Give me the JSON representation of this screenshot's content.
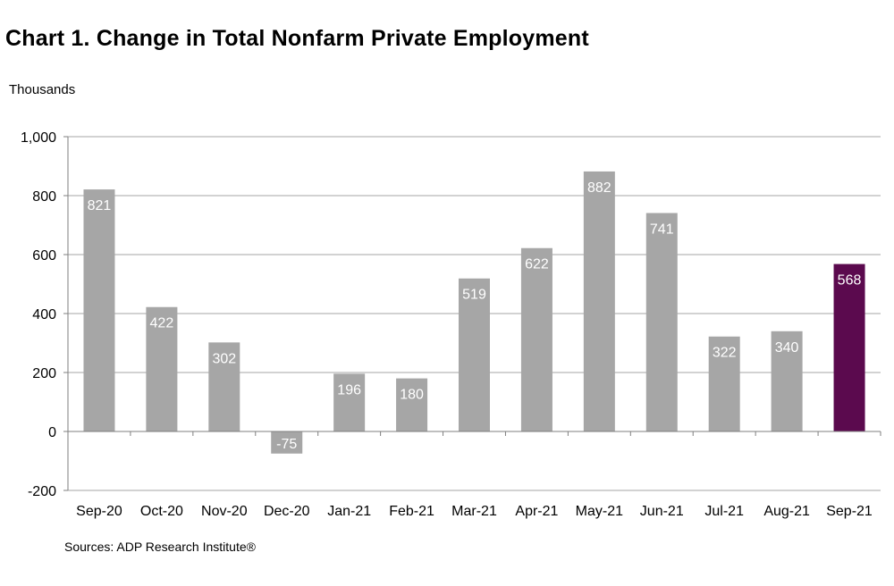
{
  "colors": {
    "bar_default": "#a6a6a6",
    "bar_highlight": "#5b0a4e",
    "grid": "#a6a6a6",
    "axis": "#7f7f7f",
    "data_label": "#ffffff"
  },
  "source": "Sources: ADP Research Institute®",
  "chart_data": {
    "type": "bar",
    "title": "Chart 1. Change in Total Nonfarm Private Employment",
    "ylabel": "Thousands",
    "xlabel": "",
    "categories": [
      "Sep-20",
      "Oct-20",
      "Nov-20",
      "Dec-20",
      "Jan-21",
      "Feb-21",
      "Mar-21",
      "Apr-21",
      "May-21",
      "Jun-21",
      "Jul-21",
      "Aug-21",
      "Sep-21"
    ],
    "values": [
      821,
      422,
      302,
      -75,
      196,
      180,
      519,
      622,
      882,
      741,
      322,
      340,
      568
    ],
    "data_labels": [
      "821",
      "422",
      "302",
      "-75",
      "196",
      "180",
      "519",
      "622",
      "882",
      "741",
      "322",
      "340",
      "568"
    ],
    "highlight_index": 12,
    "ylim": [
      -200,
      1000
    ],
    "yticks": [
      -200,
      0,
      200,
      400,
      600,
      800,
      1000
    ],
    "ytick_labels": [
      "-200",
      "0",
      "200",
      "400",
      "600",
      "800",
      "1,000"
    ],
    "grid": true,
    "legend": "none"
  }
}
